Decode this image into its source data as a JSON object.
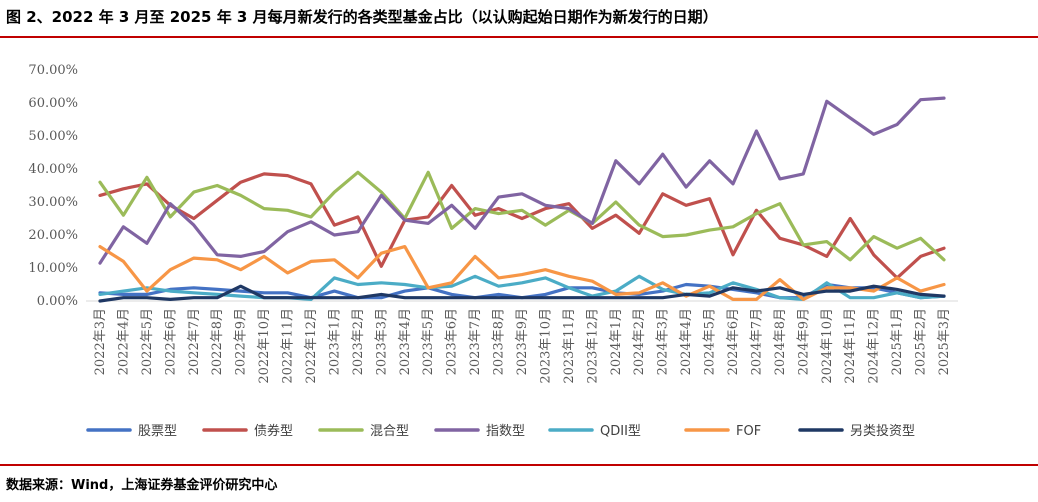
{
  "title": "图 2、2022 年 3 月至 2025 年 3 月每月新发行的各类型基金占比（以认购起始日期作为新发行的日期）",
  "source": "数据来源：Wind，上海证券基金评价研究中心",
  "chart_data": {
    "type": "line",
    "ylim": [
      0,
      70
    ],
    "yticks": [
      "0.00%",
      "10.00%",
      "20.00%",
      "30.00%",
      "40.00%",
      "50.00%",
      "60.00%",
      "70.00%"
    ],
    "categories": [
      "2022年3月",
      "2022年4月",
      "2022年5月",
      "2022年6月",
      "2022年7月",
      "2022年8月",
      "2022年9月",
      "2022年10月",
      "2022年11月",
      "2022年12月",
      "2023年1月",
      "2023年2月",
      "2023年3月",
      "2023年4月",
      "2023年5月",
      "2023年6月",
      "2023年7月",
      "2023年8月",
      "2023年9月",
      "2023年10月",
      "2023年11月",
      "2023年12月",
      "2024年1月",
      "2024年2月",
      "2024年3月",
      "2024年4月",
      "2024年5月",
      "2024年6月",
      "2024年7月",
      "2024年8月",
      "2024年9月",
      "2024年10月",
      "2024年11月",
      "2024年12月",
      "2025年1月",
      "2025年2月",
      "2025年3月"
    ],
    "legend_position": "bottom",
    "series": [
      {
        "name": "股票型",
        "color": "#4472c4",
        "values": [
          2.5,
          2,
          2,
          3.5,
          4,
          3.5,
          3,
          2.5,
          2.5,
          1,
          3,
          1,
          1,
          3,
          4,
          2,
          1,
          2,
          1,
          2,
          4,
          4,
          2.5,
          2,
          3,
          5,
          4.5,
          3.5,
          2.5,
          1,
          1,
          5,
          4,
          4,
          2.5,
          1,
          1.5
        ]
      },
      {
        "name": "债券型",
        "color": "#c0504d",
        "values": [
          32,
          34,
          35.5,
          29,
          25,
          30.5,
          36,
          38.5,
          38,
          35.5,
          23,
          25.5,
          10.5,
          24.5,
          25.5,
          35,
          26,
          28,
          25,
          28,
          29.5,
          22,
          26,
          20.5,
          32.5,
          29,
          31,
          14,
          27.5,
          19,
          17,
          13.5,
          25,
          14,
          7,
          13.5,
          16
        ]
      },
      {
        "name": "混合型",
        "color": "#9bbb59",
        "values": [
          36,
          26,
          37.5,
          25.5,
          33,
          35,
          32,
          28,
          27.5,
          25.5,
          33,
          39,
          33,
          25,
          39,
          22,
          28,
          26.5,
          27.5,
          23,
          27.5,
          23.5,
          30,
          23,
          19.5,
          20,
          21.5,
          22.5,
          26.5,
          29.5,
          17,
          18,
          12.5,
          19.5,
          16,
          19,
          12.5
        ]
      },
      {
        "name": "指数型",
        "color": "#8064a2",
        "values": [
          11.5,
          22.5,
          17.5,
          29.5,
          23,
          14,
          13.5,
          15,
          21,
          24,
          20,
          21,
          32,
          24.5,
          23.5,
          29,
          22,
          31.5,
          32.5,
          29,
          28,
          23.5,
          42.5,
          35.5,
          44.5,
          34.5,
          42.5,
          35.5,
          51.5,
          37,
          38.5,
          60.5,
          55.5,
          50.5,
          53.5,
          61,
          61.5
        ]
      },
      {
        "name": "QDII型",
        "color": "#4bacc6",
        "values": [
          2,
          3,
          4,
          3,
          2.5,
          2,
          1.5,
          1,
          1,
          0.5,
          7,
          5,
          5.5,
          5,
          4,
          4.5,
          7.5,
          4.5,
          5.5,
          7,
          4,
          1.5,
          3,
          7.5,
          3.5,
          2,
          2.5,
          5.5,
          3.5,
          1,
          0.5,
          5.5,
          1,
          1,
          2.5,
          1,
          1.5
        ]
      },
      {
        "name": "FOF",
        "color": "#f79646",
        "values": [
          16.5,
          12,
          3,
          9.5,
          13,
          12.5,
          9.5,
          13.5,
          8.5,
          12,
          12.5,
          7,
          14.5,
          16.5,
          4,
          5.5,
          13.5,
          7,
          8,
          9.5,
          7.5,
          6,
          2,
          2.5,
          5.5,
          1.5,
          4.5,
          0.5,
          0.5,
          6.5,
          0.5,
          4,
          4,
          3,
          7,
          3,
          5
        ]
      },
      {
        "name": "另类投资型",
        "color": "#1f3864",
        "values": [
          0,
          1,
          1,
          0.5,
          1,
          1,
          4.5,
          1,
          1,
          1,
          1,
          1,
          2,
          1,
          1,
          1,
          1,
          1,
          1,
          1,
          1,
          1,
          1,
          1,
          1,
          2,
          1.5,
          4,
          3,
          4,
          2,
          3,
          3,
          4.5,
          3.5,
          2,
          1.5
        ]
      }
    ]
  }
}
